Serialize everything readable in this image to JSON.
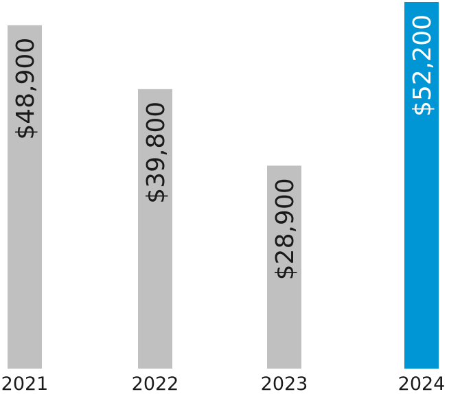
{
  "chart_data": {
    "type": "bar",
    "categories": [
      "2021",
      "2022",
      "2023",
      "2024"
    ],
    "values": [
      48900,
      39800,
      28900,
      52200
    ],
    "data_labels": [
      "$48,900",
      "$39,800",
      "$28,900",
      "$52,200"
    ],
    "highlight_index": 3,
    "ylim": [
      0,
      52200
    ],
    "grid": false,
    "legend": "none",
    "colors": {
      "bar": "#c0c0c0",
      "highlight": "#0096d6",
      "text": "#1a1a1a",
      "highlight_text": "#ffffff"
    }
  }
}
